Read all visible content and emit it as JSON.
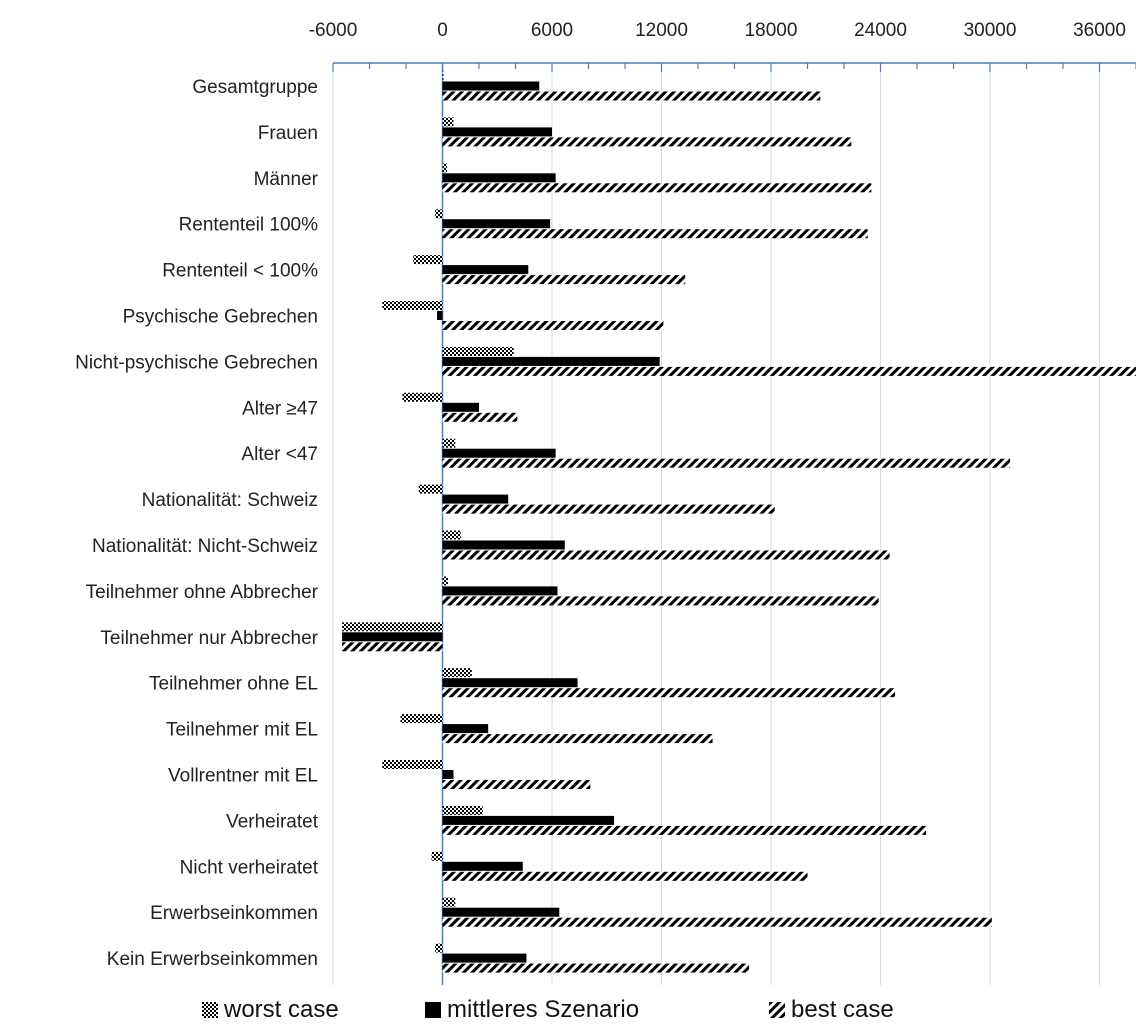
{
  "chart_data": {
    "type": "bar",
    "orientation": "horizontal",
    "x_axis_position": "top",
    "xlim": [
      -6000,
      38000
    ],
    "x_ticks": [
      -6000,
      0,
      6000,
      12000,
      18000,
      24000,
      30000,
      36000
    ],
    "x_tick_labels": [
      "-6000",
      "0",
      "6000",
      "12000",
      "18000",
      "24000",
      "30000",
      "36000"
    ],
    "grid": true,
    "legend_position": "bottom",
    "categories": [
      "Gesamtgruppe",
      "Frauen",
      "Männer",
      "Rententeil 100%",
      "Rententeil < 100%",
      "Psychische Gebrechen",
      "Nicht-psychische Gebrechen",
      "Alter ≥47",
      "Alter <47",
      "Nationalität: Schweiz",
      "Nationalität: Nicht-Schweiz",
      "Teilnehmer ohne Abbrecher",
      "Teilnehmer nur Abbrecher",
      "Teilnehmer ohne EL",
      "Teilnehmer mit EL",
      "Vollrentner mit EL",
      "Verheiratet",
      "Nicht verheiratet",
      "Erwerbseinkommen",
      "Kein Erwerbseinkommen"
    ],
    "series": [
      {
        "name": "worst case",
        "pattern": "dots",
        "values": [
          50,
          600,
          250,
          -400,
          -1600,
          -3300,
          3900,
          -2200,
          700,
          -1300,
          1000,
          300,
          -5500,
          1600,
          -2300,
          -3300,
          2200,
          -600,
          700,
          -400
        ]
      },
      {
        "name": "mittleres Szenario",
        "pattern": "solid",
        "values": [
          5300,
          6000,
          6200,
          5900,
          4700,
          -300,
          11900,
          2000,
          6200,
          3600,
          6700,
          6300,
          -5500,
          7400,
          2500,
          600,
          9400,
          4400,
          6400,
          4600
        ]
      },
      {
        "name": "best case",
        "pattern": "diagonal",
        "values": [
          20700,
          22400,
          23500,
          23300,
          13300,
          12100,
          38500,
          4100,
          31100,
          18200,
          24500,
          23900,
          -5500,
          24800,
          14800,
          8100,
          26500,
          20000,
          30100,
          16800
        ]
      }
    ]
  },
  "colors": {
    "bar": "#000000",
    "axis": "#4a7ebb",
    "grid": "#d9d9d9",
    "text": "#222222"
  }
}
